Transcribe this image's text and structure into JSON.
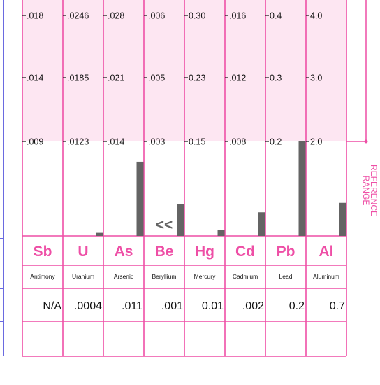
{
  "colors": {
    "accent": "#ee4fa6",
    "band": "#fde6f2",
    "bar": "#646464",
    "grid": "#ee4fa6",
    "left_border": "#6a6ae0"
  },
  "side_label": [
    "REFERENCE",
    "RANGE"
  ],
  "chart_data": {
    "type": "bar",
    "levels": [
      "top",
      "middle",
      "bottom"
    ],
    "elements": [
      {
        "symbol": "Sb",
        "name": "Antimony",
        "ticks": [
          ".018",
          ".014",
          ".009"
        ],
        "tick_values": [
          0.018,
          0.014,
          0.009
        ],
        "result_label": "N/A",
        "bar": null
      },
      {
        "symbol": "U",
        "name": "Uranium",
        "ticks": [
          ".0246",
          ".0185",
          ".0123"
        ],
        "tick_values": [
          0.0246,
          0.0185,
          0.0123
        ],
        "result_label": ".0004",
        "bar": 0.0004
      },
      {
        "symbol": "As",
        "name": "Arsenic",
        "ticks": [
          ".028",
          ".021",
          ".014"
        ],
        "tick_values": [
          0.028,
          0.021,
          0.014
        ],
        "result_label": ".011",
        "bar": 0.011
      },
      {
        "symbol": "Be",
        "name": "Beryllium",
        "ticks": [
          ".006",
          ".005",
          ".003"
        ],
        "tick_values": [
          0.006,
          0.005,
          0.003
        ],
        "result_label": ".001",
        "bar": 0.001,
        "marker": "<<"
      },
      {
        "symbol": "Hg",
        "name": "Mercury",
        "ticks": [
          "0.30",
          "0.23",
          "0.15"
        ],
        "tick_values": [
          0.3,
          0.23,
          0.15
        ],
        "result_label": "0.01",
        "bar": 0.01
      },
      {
        "symbol": "Cd",
        "name": "Cadmium",
        "ticks": [
          ".016",
          ".012",
          ".008"
        ],
        "tick_values": [
          0.016,
          0.012,
          0.008
        ],
        "result_label": ".002",
        "bar": 0.002
      },
      {
        "symbol": "Pb",
        "name": "Lead",
        "ticks": [
          "0.4",
          "0.3",
          "0.2"
        ],
        "tick_values": [
          0.4,
          0.3,
          0.2
        ],
        "result_label": "0.2",
        "bar": 0.2
      },
      {
        "symbol": "Al",
        "name": "Aluminum",
        "ticks": [
          "4.0",
          "3.0",
          "2.0"
        ],
        "tick_values": [
          4.0,
          3.0,
          2.0
        ],
        "result_label": "0.7",
        "bar": 0.7
      }
    ]
  }
}
